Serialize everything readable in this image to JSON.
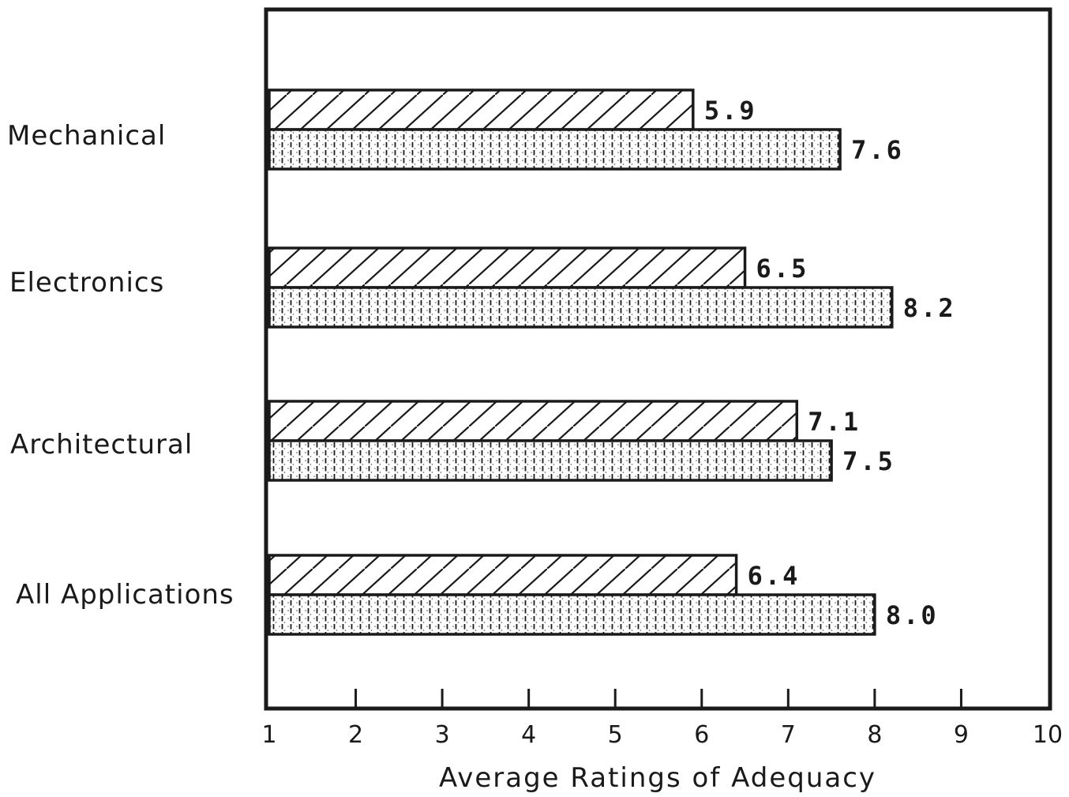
{
  "chart_data": {
    "type": "bar",
    "orientation": "horizontal",
    "categories": [
      "Mechanical",
      "Electronics",
      "Architectural",
      "All Applications"
    ],
    "series": [
      {
        "pattern": "diagonal-hatch",
        "values": [
          5.9,
          6.5,
          7.1,
          6.4
        ],
        "labels": [
          "5.9",
          "6.5",
          "7.1",
          "6.4"
        ]
      },
      {
        "pattern": "vertical-dotted",
        "values": [
          7.6,
          8.2,
          7.5,
          8.0
        ],
        "labels": [
          "7.6",
          "8.2",
          "7.5",
          "8.0"
        ]
      }
    ],
    "xlim": [
      1,
      10
    ],
    "xticks": [
      "1",
      "2",
      "3",
      "4",
      "5",
      "6",
      "7",
      "8",
      "9",
      "10"
    ],
    "xlabel": "Average Ratings of Adequacy",
    "ylabel": "",
    "title": "",
    "grid": false,
    "legend": "none"
  }
}
